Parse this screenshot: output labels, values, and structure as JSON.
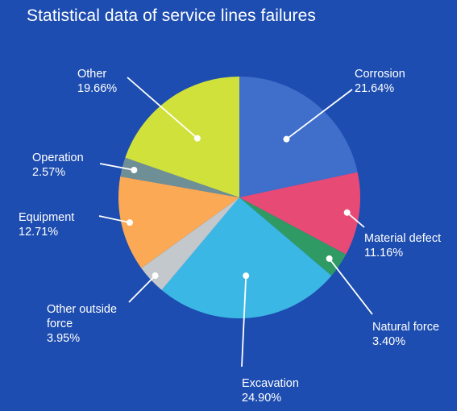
{
  "chart_data": {
    "type": "pie",
    "title": "Statistical data of service lines failures",
    "slices": [
      {
        "label": "Corrosion",
        "value": 21.64,
        "pct_text": "21.64%",
        "color": "#3f6fcb"
      },
      {
        "label": "Material defect",
        "value": 11.16,
        "pct_text": "11.16%",
        "color": "#e84a76"
      },
      {
        "label": "Natural force",
        "value": 3.4,
        "pct_text": "3.40%",
        "color": "#2f9a63"
      },
      {
        "label": "Excavation",
        "value": 24.9,
        "pct_text": "24.90%",
        "color": "#3bb7e6"
      },
      {
        "label": [
          "Other outside",
          "force"
        ],
        "value": 3.95,
        "pct_text": "3.95%",
        "color": "#c2c8cc"
      },
      {
        "label": "Equipment",
        "value": 12.71,
        "pct_text": "12.71%",
        "color": "#fba955"
      },
      {
        "label": "Operation",
        "value": 2.57,
        "pct_text": "2.57%",
        "color": "#6f8f96"
      },
      {
        "label": "Other",
        "value": 19.66,
        "pct_text": "19.66%",
        "color": "#d1e13b"
      }
    ],
    "start_angle_deg": 0,
    "direction": "clockwise",
    "background": "#1d4db0",
    "label_color": "#ffffff"
  }
}
